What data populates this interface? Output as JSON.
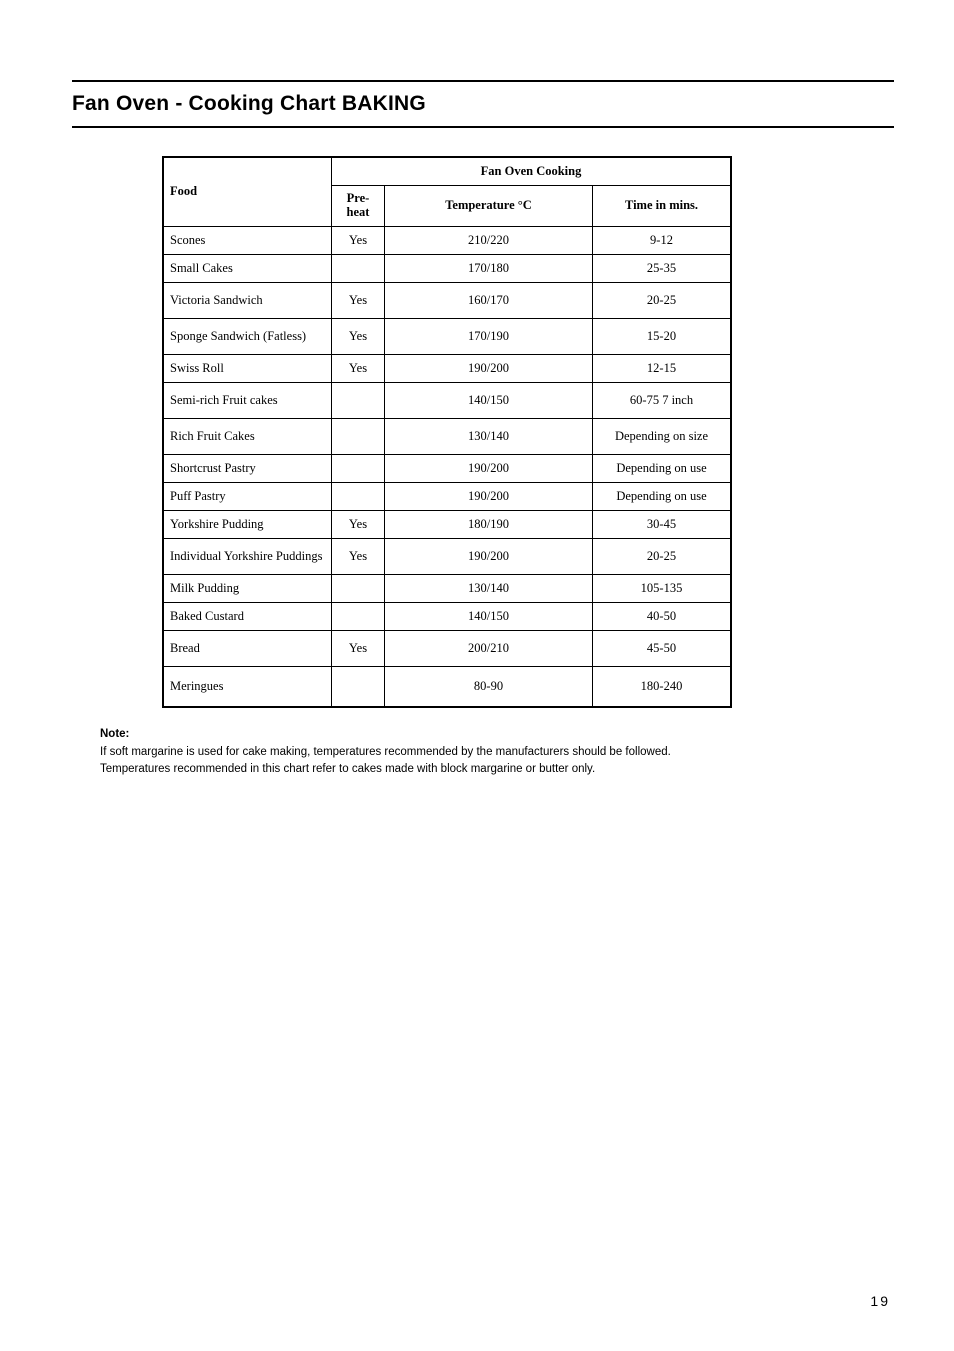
{
  "page": {
    "title": "Fan Oven - Cooking Chart BAKING",
    "number": "19"
  },
  "table": {
    "header": {
      "food": "Food",
      "span": "Fan Oven Cooking",
      "preheat": "Pre-heat",
      "temperature": "Temperature °C",
      "time": "Time in mins."
    },
    "rows": [
      {
        "food": "Scones",
        "preheat": "Yes",
        "temp": "210/220",
        "time": "9-12",
        "tall": false
      },
      {
        "food": "Small Cakes",
        "preheat": "",
        "temp": "170/180",
        "time": "25-35",
        "tall": false
      },
      {
        "food": "Victoria Sandwich",
        "preheat": "Yes",
        "temp": "160/170",
        "time": "20-25",
        "tall": true
      },
      {
        "food": "Sponge Sandwich (Fatless)",
        "preheat": "Yes",
        "temp": "170/190",
        "time": "15-20",
        "tall": true
      },
      {
        "food": "Swiss Roll",
        "preheat": "Yes",
        "temp": "190/200",
        "time": "12-15",
        "tall": false
      },
      {
        "food": "Semi-rich Fruit cakes",
        "preheat": "",
        "temp": "140/150",
        "time": "60-75   7 inch",
        "tall": true
      },
      {
        "food": "Rich Fruit Cakes",
        "preheat": "",
        "temp": "130/140",
        "time": "Depending on size",
        "tall": true
      },
      {
        "food": "Shortcrust Pastry",
        "preheat": "",
        "temp": "190/200",
        "time": "Depending on use",
        "tall": false
      },
      {
        "food": "Puff Pastry",
        "preheat": "",
        "temp": "190/200",
        "time": "Depending on use",
        "tall": false
      },
      {
        "food": "Yorkshire Pudding",
        "preheat": "Yes",
        "temp": "180/190",
        "time": "30-45",
        "tall": false
      },
      {
        "food": "Individual Yorkshire Puddings",
        "preheat": "Yes",
        "temp": "190/200",
        "time": "20-25",
        "tall": true
      },
      {
        "food": "Milk Pudding",
        "preheat": "",
        "temp": "130/140",
        "time": "105-135",
        "tall": false
      },
      {
        "food": "Baked Custard",
        "preheat": "",
        "temp": "140/150",
        "time": "40-50",
        "tall": false
      },
      {
        "food": "Bread",
        "preheat": "Yes",
        "temp": "200/210",
        "time": "45-50",
        "tall": true
      },
      {
        "food": "Meringues",
        "preheat": "",
        "temp": "80-90",
        "time": "180-240",
        "tall": true,
        "taller": true
      }
    ]
  },
  "note": {
    "label": "Note:",
    "line1": "If soft margarine is used for cake making, temperatures recommended by the manufacturers should be followed.",
    "line2": "Temperatures recommended in this chart refer to cakes made with block margarine or butter only."
  }
}
